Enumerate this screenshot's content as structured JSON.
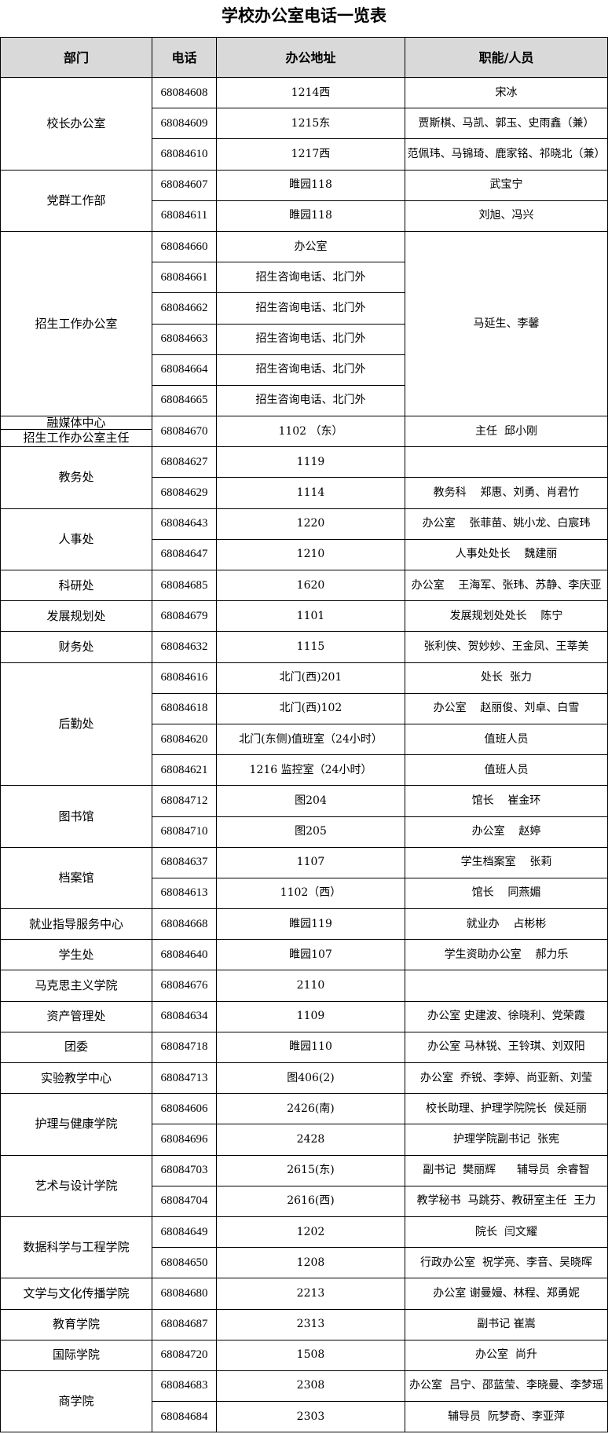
{
  "title": "学校办公室电话一览表",
  "headers": [
    "部门",
    "电话",
    "办公地址",
    "职能/人员"
  ],
  "groups": [
    {
      "dept": "校长办公室",
      "rows": [
        {
          "phone": "68084608",
          "address": "1214西",
          "people": "宋冰"
        },
        {
          "phone": "68084609",
          "address": "1215东",
          "people": "贾斯棋、马凯、郭玉、史雨鑫（兼）"
        },
        {
          "phone": "68084610",
          "address": "1217西",
          "people": "范佩玮、马锦琦、鹿家铭、祁晓北（兼）"
        }
      ]
    },
    {
      "dept": "党群工作部",
      "rows": [
        {
          "phone": "68084607",
          "address": "睢园118",
          "people": "武宝宁"
        },
        {
          "phone": "68084611",
          "address": "睢园118",
          "people": "刘旭、冯兴"
        }
      ]
    },
    {
      "dept": "招生工作办公室",
      "shared_people": "马延生、李馨",
      "rows": [
        {
          "phone": "68084660",
          "address": "办公室"
        },
        {
          "phone": "68084661",
          "address": "招生咨询电话、北门外"
        },
        {
          "phone": "68084662",
          "address": "招生咨询电话、北门外"
        },
        {
          "phone": "68084663",
          "address": "招生咨询电话、北门外"
        },
        {
          "phone": "68084664",
          "address": "招生咨询电话、北门外"
        },
        {
          "phone": "68084665",
          "address": "招生咨询电话、北门外"
        }
      ]
    },
    {
      "dept": "融媒体中心",
      "dept2": "招生工作办公室主任",
      "rows": [
        {
          "phone": "68084670",
          "address": "1102 （东）",
          "people": "主任  邱小刚"
        }
      ]
    },
    {
      "dept": "教务处",
      "rows": [
        {
          "phone": "68084627",
          "address": "1119",
          "people": ""
        },
        {
          "phone": "68084629",
          "address": "1114",
          "people": "教务科    郑惠、刘勇、肖君竹"
        }
      ]
    },
    {
      "dept": "人事处",
      "rows": [
        {
          "phone": "68084643",
          "address": "1220",
          "people": "办公室    张菲苗、姚小龙、白宸玮"
        },
        {
          "phone": "68084647",
          "address": "1210",
          "people": "人事处处长    魏建丽"
        }
      ]
    },
    {
      "dept": "科研处",
      "rows": [
        {
          "phone": "68084685",
          "address": "1620",
          "people": "办公室    王海军、张玮、苏静、李庆亚"
        }
      ]
    },
    {
      "dept": "发展规划处",
      "rows": [
        {
          "phone": "68084679",
          "address": "1101",
          "people": "发展规划处处长    陈宁"
        }
      ]
    },
    {
      "dept": "财务处",
      "rows": [
        {
          "phone": "68084632",
          "address": "1115",
          "people": "张利侠、贺妙妙、王金凤、王莘美"
        }
      ]
    },
    {
      "dept": "后勤处",
      "rows": [
        {
          "phone": "68084616",
          "address": "北门(西)201",
          "people": "处长  张力"
        },
        {
          "phone": "68084618",
          "address": "北门(西)102",
          "people": "办公室    赵丽俊、刘卓、白雪"
        },
        {
          "phone": "68084620",
          "address": "北门(东侧)值班室（24小时）",
          "people": "值班人员"
        },
        {
          "phone": "68084621",
          "address": "1216 监控室（24小时）",
          "people": "值班人员"
        }
      ]
    },
    {
      "dept": "图书馆",
      "rows": [
        {
          "phone": "68084712",
          "address": "图204",
          "people": "馆长    崔金环"
        },
        {
          "phone": "68084710",
          "address": "图205",
          "people": "办公室    赵婷"
        }
      ]
    },
    {
      "dept": "档案馆",
      "rows": [
        {
          "phone": "68084637",
          "address": "1107",
          "people": "学生档案室    张莉"
        },
        {
          "phone": "68084613",
          "address": "1102（西）",
          "people": "馆长    同燕媚"
        }
      ]
    },
    {
      "dept": "就业指导服务中心",
      "rows": [
        {
          "phone": "68084668",
          "address": "睢园119",
          "people": "就业办    占彬彬"
        }
      ]
    },
    {
      "dept": "学生处",
      "rows": [
        {
          "phone": "68084640",
          "address": "睢园107",
          "people": "学生资助办公室    郝力乐"
        }
      ]
    },
    {
      "dept": "马克思主义学院",
      "rows": [
        {
          "phone": "68084676",
          "address": "2110",
          "people": ""
        }
      ]
    },
    {
      "dept": "资产管理处",
      "rows": [
        {
          "phone": "68084634",
          "address": "1109",
          "people": "办公室 史建波、徐晓利、党荣霞"
        }
      ]
    },
    {
      "dept": "团委",
      "rows": [
        {
          "phone": "68084718",
          "address": "睢园110",
          "people": "办公室 马林锐、王铃琪、刘双阳"
        }
      ]
    },
    {
      "dept": "实验教学中心",
      "rows": [
        {
          "phone": "68084713",
          "address": "图406(2)",
          "people": "办公室  乔锐、李婷、尚亚新、刘莹"
        }
      ]
    },
    {
      "dept": "护理与健康学院",
      "rows": [
        {
          "phone": "68084606",
          "address": "2426(南)",
          "people": "校长助理、护理学院院长  侯延丽"
        },
        {
          "phone": "68084696",
          "address": "2428",
          "people": "护理学院副书记  张宪"
        }
      ]
    },
    {
      "dept": "艺术与设计学院",
      "rows": [
        {
          "phone": "68084703",
          "address": "2615(东)",
          "people": "副书记  樊丽辉      辅导员  余睿智"
        },
        {
          "phone": "68084704",
          "address": "2616(西)",
          "people": "教学秘书  马跳芬、教研室主任  王力"
        }
      ]
    },
    {
      "dept": "数据科学与工程学院",
      "rows": [
        {
          "phone": "68084649",
          "address": "1202",
          "people": "院长  闫文耀"
        },
        {
          "phone": "68084650",
          "address": "1208",
          "people": "行政办公室  祝学亮、李音、吴晓晖"
        }
      ]
    },
    {
      "dept": "文学与文化传播学院",
      "rows": [
        {
          "phone": "68084680",
          "address": "2213",
          "people": "办公室 谢曼嫚、林程、郑勇妮"
        }
      ]
    },
    {
      "dept": "教育学院",
      "rows": [
        {
          "phone": "68084687",
          "address": "2313",
          "people": "副书记 崔嵩"
        }
      ]
    },
    {
      "dept": "国际学院",
      "rows": [
        {
          "phone": "68084720",
          "address": "1508",
          "people": "办公室  尚升"
        }
      ]
    },
    {
      "dept": "商学院",
      "rows": [
        {
          "phone": "68084683",
          "address": "2308",
          "people": "办公室  吕宁、邵蓝莹、李晓曼、李梦瑶"
        },
        {
          "phone": "68084684",
          "address": "2303",
          "people": "辅导员  阮梦奇、李亚萍"
        }
      ]
    }
  ]
}
